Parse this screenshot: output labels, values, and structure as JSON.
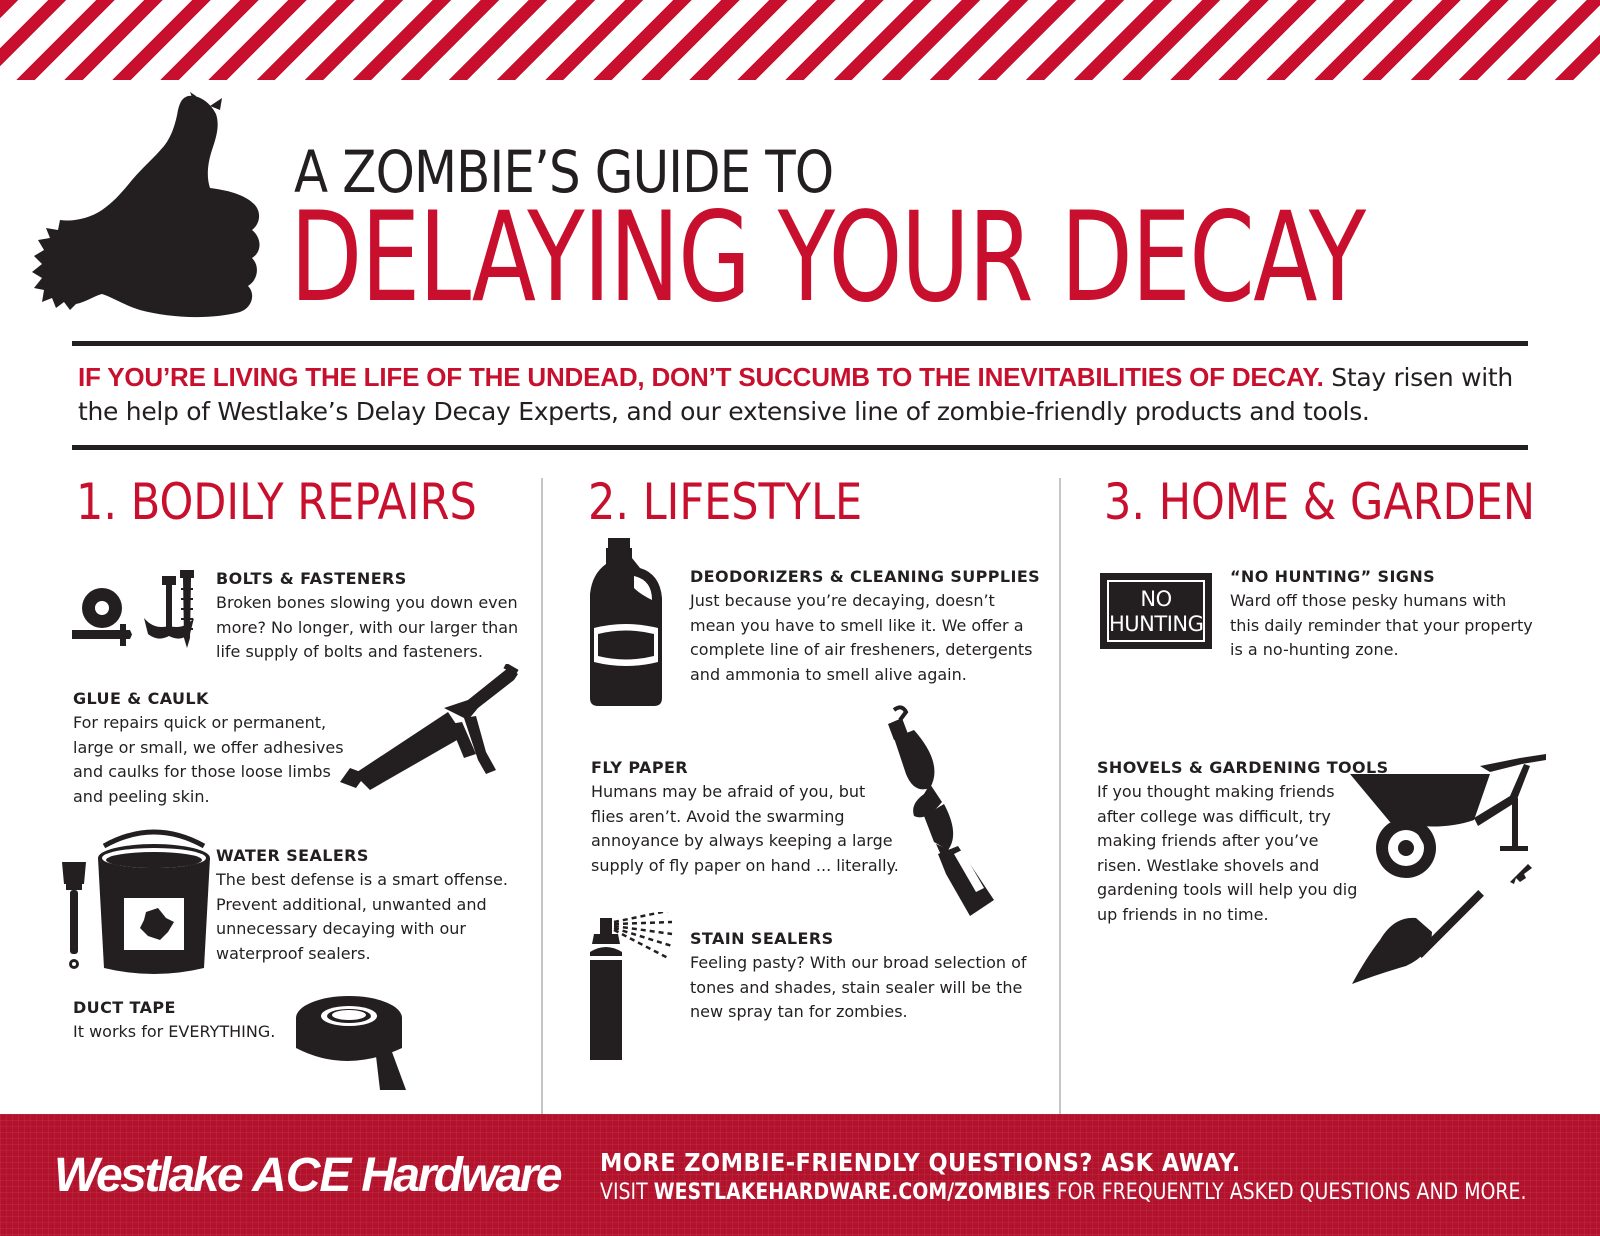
{
  "header": {
    "title_line1": "A ZOMBIE’S GUIDE TO",
    "title_line2": "DELAYING YOUR DECAY"
  },
  "intro": {
    "lead": "IF YOU’RE LIVING THE LIFE OF THE UNDEAD, DON’T SUCCUMB TO THE INEVITABILITIES OF DECAY.",
    "body": "Stay risen with the help of Westlake’s Delay Decay Experts, and our extensive line of zombie-friendly products and tools."
  },
  "sections": [
    {
      "heading": "1. BODILY REPAIRS",
      "items": [
        {
          "title": "BOLTS & FASTENERS",
          "text": "Broken bones slowing you down even more? No longer, with our larger than life supply of bolts and fasteners.",
          "icon": "bolts-fasteners-icon"
        },
        {
          "title": "GLUE & CAULK",
          "text": "For repairs quick or permanent, large or small, we offer adhesives and caulks for those loose limbs and peeling skin.",
          "icon": "caulk-gun-icon"
        },
        {
          "title": "WATER SEALERS",
          "text": "The best defense is a smart offense. Prevent additional, unwanted and unnecessary decaying with our waterproof sealers.",
          "icon": "paint-bucket-brush-icon"
        },
        {
          "title": "DUCT TAPE",
          "text": "It works for EVERYTHING.",
          "icon": "duct-tape-icon"
        }
      ]
    },
    {
      "heading": "2. LIFESTYLE",
      "items": [
        {
          "title": "DEODORIZERS & CLEANING SUPPLIES",
          "text": "Just because you’re decaying, doesn’t mean you have to smell like it. We offer a complete line of air fresheners, detergents and ammonia to smell alive again.",
          "icon": "bleach-bottle-icon"
        },
        {
          "title": "FLY PAPER",
          "text": "Humans may be afraid of you, but flies aren’t. Avoid the swarming annoyance by always keeping a large supply of fly paper on hand ... literally.",
          "icon": "fly-paper-icon"
        },
        {
          "title": "STAIN SEALERS",
          "text": "Feeling pasty? With our broad selection of tones and shades, stain sealer will be the new spray tan for zombies.",
          "icon": "spray-can-icon"
        }
      ]
    },
    {
      "heading": "3. HOME & GARDEN",
      "items": [
        {
          "title": "“NO HUNTING” SIGNS",
          "text": "Ward off those pesky humans with this daily reminder that your property is a no-hunting zone.",
          "icon": "no-hunting-sign-icon",
          "sign_line1": "NO",
          "sign_line2": "HUNTING"
        },
        {
          "title": "SHOVELS & GARDENING TOOLS",
          "text": "If you thought making friends after college was difficult, try making friends after you’ve risen. Westlake shovels and gardening tools will help you dig up friends in no time.",
          "icon": "wheelbarrow-shovel-icon"
        }
      ]
    }
  ],
  "footer": {
    "logo_westlake": "Westlake",
    "logo_ace": "ACE",
    "logo_hardware": "Hardware",
    "line1": "MORE ZOMBIE-FRIENDLY QUESTIONS? ASK AWAY.",
    "line2_pre": "VISIT",
    "line2_url": "WESTLAKEHARDWARE.COM/ZOMBIES",
    "line2_post": "FOR FREQUENTLY ASKED QUESTIONS AND MORE."
  },
  "colors": {
    "accent_red": "#c8102e",
    "footer_red": "#b3122c",
    "ink": "#231f20"
  }
}
